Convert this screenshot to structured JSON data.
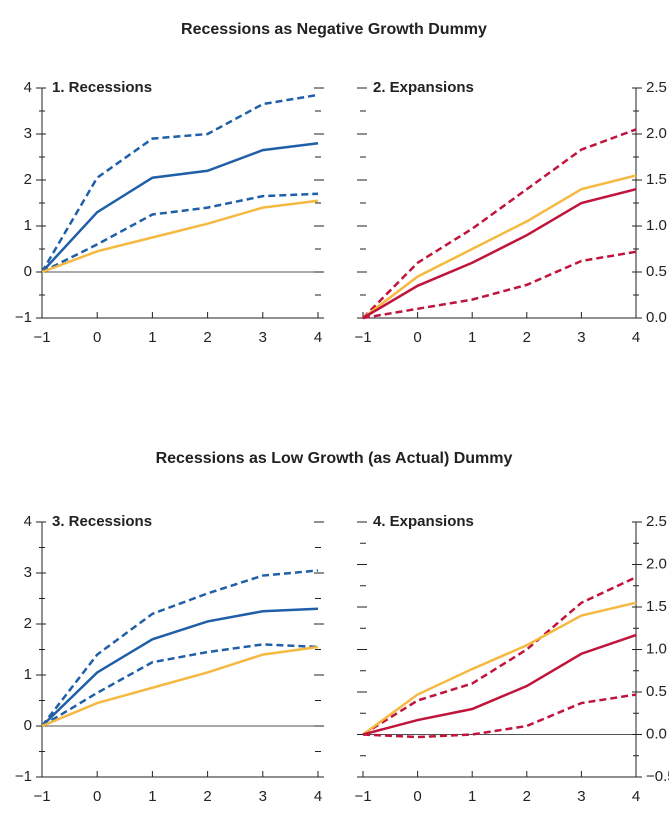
{
  "headings": [
    "Recessions as Negative Growth Dummy",
    "Recessions as Low Growth (as Actual) Dummy"
  ],
  "chart_data": [
    {
      "type": "line",
      "title": "1. Recessions",
      "axis_side": "left",
      "x": [
        -1,
        0,
        1,
        2,
        3,
        4
      ],
      "xlim": [
        -1,
        4
      ],
      "xticks": [
        {
          "value": -1,
          "label": "−1"
        },
        0,
        1,
        2,
        3,
        4
      ],
      "ylim": [
        -1,
        4
      ],
      "yticks": [
        {
          "value": -1,
          "label": "−1"
        },
        0,
        1,
        2,
        3,
        4
      ],
      "yminorticks": [
        -0.5,
        0.5,
        1.5,
        2.5,
        3.5
      ],
      "series": [
        {
          "color": "#1f5fa8",
          "style": "dashed",
          "values": [
            0,
            2.05,
            2.9,
            3.0,
            3.65,
            3.85
          ]
        },
        {
          "color": "#1f5fa8",
          "style": "solid",
          "values": [
            0,
            1.3,
            2.05,
            2.2,
            2.65,
            2.8
          ]
        },
        {
          "color": "#1f5fa8",
          "style": "dashed",
          "values": [
            0,
            0.6,
            1.25,
            1.4,
            1.65,
            1.7
          ]
        },
        {
          "color": "#f5b942",
          "style": "solid",
          "values": [
            0,
            0.45,
            0.75,
            1.05,
            1.4,
            1.55
          ]
        }
      ]
    },
    {
      "type": "line",
      "title": "2. Expansions",
      "axis_side": "right",
      "x": [
        -1,
        0,
        1,
        2,
        3,
        4
      ],
      "xlim": [
        -1,
        4
      ],
      "xticks": [
        {
          "value": -1,
          "label": "−1"
        },
        0,
        1,
        2,
        3,
        4
      ],
      "ylim": [
        0,
        2.5
      ],
      "yticks": [
        {
          "value": 0,
          "label": "0.0"
        },
        0.5,
        {
          "value": 1,
          "label": "1.0"
        },
        1.5,
        {
          "value": 2,
          "label": "2.0"
        },
        2.5
      ],
      "yminorticks": [
        0.25,
        0.75,
        1.25,
        1.75,
        2.25
      ],
      "series": [
        {
          "color": "#c0143c",
          "style": "dashed",
          "values": [
            0,
            0.6,
            0.97,
            1.4,
            1.83,
            2.05
          ]
        },
        {
          "color": "#f5b942",
          "style": "solid",
          "values": [
            0,
            0.45,
            0.75,
            1.05,
            1.4,
            1.55
          ]
        },
        {
          "color": "#c0143c",
          "style": "solid",
          "values": [
            0,
            0.35,
            0.6,
            0.9,
            1.25,
            1.4
          ]
        },
        {
          "color": "#c0143c",
          "style": "dashed",
          "values": [
            0,
            0.1,
            0.2,
            0.36,
            0.62,
            0.72
          ]
        }
      ]
    },
    {
      "type": "line",
      "title": "3. Recessions",
      "axis_side": "left",
      "x": [
        -1,
        0,
        1,
        2,
        3,
        4
      ],
      "xlim": [
        -1,
        4
      ],
      "xticks": [
        {
          "value": -1,
          "label": "−1"
        },
        0,
        1,
        2,
        3,
        4
      ],
      "ylim": [
        -1,
        4
      ],
      "yticks": [
        {
          "value": -1,
          "label": "−1"
        },
        0,
        1,
        2,
        3,
        4
      ],
      "yminorticks": [
        -0.5,
        0.5,
        1.5,
        2.5,
        3.5
      ],
      "series": [
        {
          "color": "#1f5fa8",
          "style": "dashed",
          "values": [
            0,
            1.4,
            2.2,
            2.6,
            2.95,
            3.05
          ]
        },
        {
          "color": "#1f5fa8",
          "style": "solid",
          "values": [
            0,
            1.05,
            1.7,
            2.05,
            2.25,
            2.3
          ]
        },
        {
          "color": "#1f5fa8",
          "style": "dashed",
          "values": [
            0,
            0.65,
            1.25,
            1.45,
            1.6,
            1.55
          ]
        },
        {
          "color": "#f5b942",
          "style": "solid",
          "values": [
            0,
            0.45,
            0.75,
            1.05,
            1.4,
            1.55
          ]
        }
      ]
    },
    {
      "type": "line",
      "title": "4. Expansions",
      "axis_side": "right",
      "x": [
        -1,
        0,
        1,
        2,
        3,
        4
      ],
      "xlim": [
        -1,
        4
      ],
      "xticks": [
        {
          "value": -1,
          "label": "−1"
        },
        0,
        1,
        2,
        3,
        4
      ],
      "ylim": [
        -0.5,
        2.5
      ],
      "yticks": [
        {
          "value": -0.5,
          "label": "−0.5"
        },
        {
          "value": 0,
          "label": "0.0"
        },
        0.5,
        {
          "value": 1,
          "label": "1.0"
        },
        1.5,
        {
          "value": 2,
          "label": "2.0"
        },
        2.5
      ],
      "yminorticks": [
        -0.25,
        0.25,
        0.75,
        1.25,
        1.75,
        2.25
      ],
      "series": [
        {
          "color": "#c0143c",
          "style": "dashed",
          "values": [
            0,
            0.4,
            0.6,
            1.0,
            1.55,
            1.85
          ]
        },
        {
          "color": "#f5b942",
          "style": "solid",
          "values": [
            0,
            0.47,
            0.77,
            1.05,
            1.4,
            1.55
          ]
        },
        {
          "color": "#c0143c",
          "style": "solid",
          "values": [
            0,
            0.17,
            0.3,
            0.57,
            0.95,
            1.17
          ]
        },
        {
          "color": "#c0143c",
          "style": "dashed",
          "values": [
            0,
            -0.03,
            0,
            0.1,
            0.37,
            0.47
          ]
        }
      ]
    }
  ]
}
